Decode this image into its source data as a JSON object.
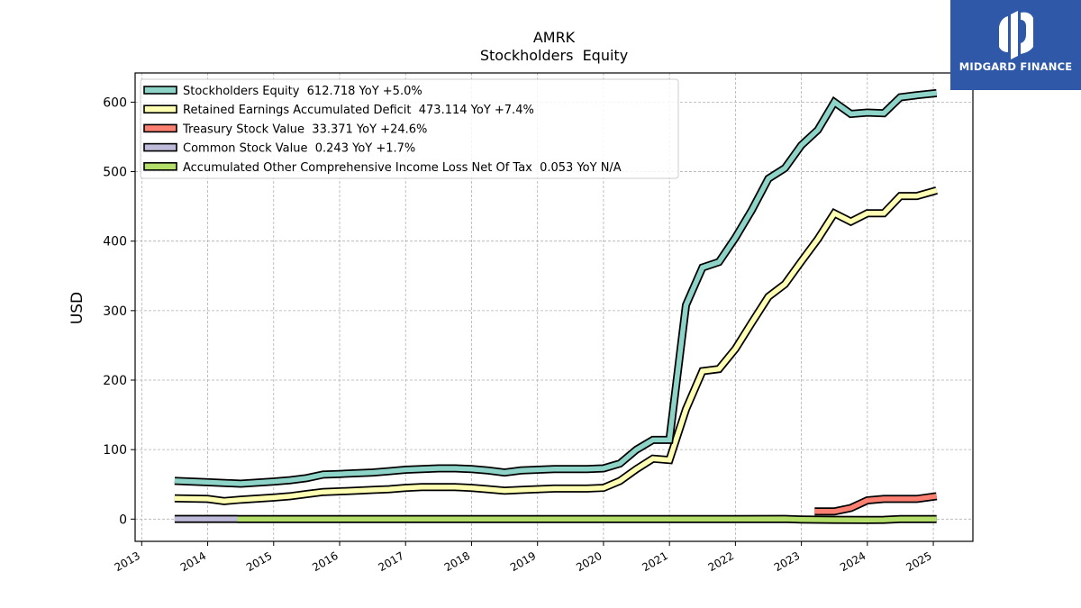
{
  "brand": {
    "name": "MIDGARD FINANCE",
    "color": "#2f59a8",
    "icon": "midgard-logo-icon"
  },
  "chart_data": {
    "type": "line",
    "title": "AMRK",
    "subtitle": "Stockholders  Equity",
    "xlabel": "",
    "ylabel": "USD",
    "xlim": [
      2012.9,
      2025.6
    ],
    "ylim": [
      -32,
      642
    ],
    "xticks": [
      2013,
      2014,
      2015,
      2016,
      2017,
      2018,
      2019,
      2020,
      2021,
      2022,
      2023,
      2024,
      2025
    ],
    "xtick_labels": [
      "2013",
      "2014",
      "2015",
      "2016",
      "2017",
      "2018",
      "2019",
      "2020",
      "2021",
      "2022",
      "2023",
      "2024",
      "2025"
    ],
    "yticks": [
      0,
      100,
      200,
      300,
      400,
      500,
      600
    ],
    "ytick_labels": [
      "0",
      "100",
      "200",
      "300",
      "400",
      "500",
      "600"
    ],
    "grid": true,
    "legend_position": "top-left",
    "series": [
      {
        "name": "Stockholders Equity  612.718 YoY +5.0%",
        "color": "#8dd3c7",
        "x": [
          2013.5,
          2014.0,
          2014.5,
          2015.0,
          2015.25,
          2015.5,
          2015.75,
          2016.0,
          2016.25,
          2016.5,
          2016.75,
          2017.0,
          2017.25,
          2017.5,
          2017.75,
          2018.0,
          2018.25,
          2018.5,
          2018.75,
          2019.0,
          2019.25,
          2019.5,
          2019.75,
          2020.0,
          2020.25,
          2020.5,
          2020.75,
          2020.92,
          2021.0,
          2021.25,
          2021.5,
          2021.75,
          2022.0,
          2022.25,
          2022.5,
          2022.75,
          2023.0,
          2023.25,
          2023.5,
          2023.75,
          2024.0,
          2024.25,
          2024.5,
          2024.75,
          2025.05
        ],
        "values": [
          55,
          53,
          51,
          54,
          56,
          59,
          64,
          65,
          66,
          67,
          69,
          71,
          72,
          73,
          73,
          72,
          70,
          67,
          70,
          71,
          72,
          72,
          72,
          73,
          80,
          100,
          114,
          114,
          114,
          308,
          362,
          370,
          405,
          445,
          490,
          505,
          538,
          560,
          600,
          583,
          585,
          584,
          607,
          610,
          613
        ]
      },
      {
        "name": "Retained Earnings Accumulated Deficit  473.114 YoY +7.4%",
        "color": "#ffffb3",
        "x": [
          2013.5,
          2014.0,
          2014.25,
          2014.5,
          2015.0,
          2015.25,
          2015.5,
          2015.75,
          2016.0,
          2016.25,
          2016.5,
          2016.75,
          2017.0,
          2017.25,
          2017.5,
          2017.75,
          2018.0,
          2018.25,
          2018.5,
          2018.75,
          2019.0,
          2019.25,
          2019.5,
          2019.75,
          2020.0,
          2020.25,
          2020.5,
          2020.75,
          2021.0,
          2021.25,
          2021.5,
          2021.75,
          2022.0,
          2022.25,
          2022.5,
          2022.75,
          2023.0,
          2023.25,
          2023.5,
          2023.75,
          2024.0,
          2024.25,
          2024.5,
          2024.75,
          2025.05
        ],
        "values": [
          30,
          29,
          26,
          28,
          31,
          33,
          36,
          39,
          40,
          41,
          42,
          43,
          45,
          46,
          46,
          46,
          45,
          43,
          41,
          42,
          43,
          44,
          44,
          44,
          45,
          55,
          72,
          87,
          85,
          158,
          213,
          216,
          245,
          283,
          320,
          338,
          371,
          403,
          440,
          428,
          440,
          440,
          465,
          465,
          473
        ]
      },
      {
        "name": "Treasury Stock Value  33.371 YoY +24.6%",
        "color": "#fb8072",
        "x": [
          2023.2,
          2023.5,
          2023.75,
          2024.0,
          2024.25,
          2024.5,
          2024.75,
          2025.05
        ],
        "values": [
          11,
          11,
          16,
          27,
          29,
          29,
          29,
          33
        ]
      },
      {
        "name": "Common Stock Value  0.243 YoY +1.7%",
        "color": "#bebada",
        "x": [
          2013.5,
          2014.0,
          2014.45
        ],
        "values": [
          0.24,
          0.24,
          0.24
        ]
      },
      {
        "name": "Accumulated Other Comprehensive Income Loss Net Of Tax  0.053 YoY N/A",
        "color": "#b3de69",
        "x": [
          2014.45,
          2015.0,
          2016.0,
          2017.0,
          2018.0,
          2019.0,
          2020.0,
          2021.0,
          2022.0,
          2022.75,
          2023.0,
          2023.5,
          2024.0,
          2024.25,
          2024.5,
          2025.05
        ],
        "values": [
          0.05,
          0.05,
          0.05,
          0.05,
          0.05,
          0.05,
          0.05,
          0.05,
          0.05,
          0.3,
          -0.5,
          -1.0,
          -1.2,
          -1.0,
          0.0,
          0.05
        ]
      }
    ]
  }
}
